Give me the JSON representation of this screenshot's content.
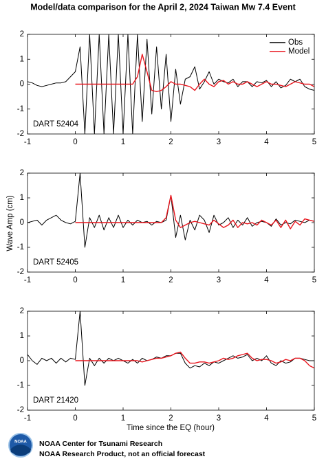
{
  "title": "Model/data comparison for the April 2, 2024 Taiwan Mw 7.4 Event",
  "ylabel": "Wave Amp (cm)",
  "xlabel": "Time since the EQ (hour)",
  "footer": {
    "logo_text": "NOAA",
    "line1": "NOAA Center for Tsunami Research",
    "line2": "NOAA Research Product, not an official forecast"
  },
  "chart_data": [
    {
      "type": "line",
      "annotation": "DART 52404",
      "legend": "upper right",
      "xlim": [
        -1,
        5
      ],
      "xticks": [
        -1,
        0,
        1,
        2,
        3,
        4,
        5
      ],
      "ylim": [
        -2,
        2
      ],
      "yticks": [
        -2,
        -1,
        0,
        1,
        2
      ],
      "x": [
        -1,
        -0.9,
        -0.8,
        -0.7,
        -0.6,
        -0.5,
        -0.4,
        -0.3,
        -0.2,
        -0.1,
        0,
        0.1,
        0.2,
        0.3,
        0.4,
        0.5,
        0.6,
        0.7,
        0.8,
        0.9,
        1,
        1.1,
        1.2,
        1.3,
        1.4,
        1.5,
        1.6,
        1.7,
        1.8,
        1.9,
        2,
        2.1,
        2.2,
        2.3,
        2.4,
        2.5,
        2.6,
        2.7,
        2.8,
        2.9,
        3,
        3.1,
        3.2,
        3.3,
        3.4,
        3.5,
        3.6,
        3.7,
        3.8,
        3.9,
        4,
        4.1,
        4.2,
        4.3,
        4.4,
        4.5,
        4.6,
        4.7,
        4.8,
        4.9,
        5
      ],
      "series": [
        {
          "name": "Obs",
          "color": "#000000",
          "values": [
            0.1,
            0.05,
            -0.05,
            -0.1,
            -0.05,
            0,
            0.05,
            0.05,
            0.1,
            0.3,
            0.5,
            1.5,
            -2,
            2,
            -2,
            2,
            -2,
            2,
            -2,
            2,
            -2,
            2,
            -2,
            2,
            -1.5,
            1.8,
            -1.2,
            1.5,
            -1,
            1.2,
            -1.5,
            0.6,
            -0.8,
            0.2,
            0.3,
            0.7,
            -0.2,
            0.1,
            0.5,
            0,
            0.2,
            0.1,
            0.05,
            0.2,
            -0.1,
            0.1,
            0.1,
            -0.1,
            0.1,
            0.05,
            0.15,
            -0.1,
            0.1,
            -0.15,
            -0.05,
            0.2,
            0.1,
            0.2,
            -0.1,
            -0.2,
            -0.25
          ]
        },
        {
          "name": "Model",
          "color": "#e8141c",
          "values": [
            null,
            null,
            null,
            null,
            null,
            null,
            null,
            null,
            null,
            null,
            0,
            0,
            0,
            0,
            0,
            0,
            0,
            0,
            0,
            0,
            0,
            0,
            0,
            0.3,
            1.2,
            0.5,
            -0.25,
            -0.3,
            -0.25,
            -0.1,
            0.1,
            0,
            0,
            -0.05,
            -0.1,
            -0.25,
            0,
            0.2,
            0,
            -0.1,
            0.1,
            0.15,
            0,
            0.1,
            0,
            0,
            0.1,
            0,
            -0.1,
            0,
            0.1,
            0,
            0,
            -0.05,
            -0.1,
            0,
            0.1,
            0.05,
            0,
            0,
            -0.1
          ]
        }
      ]
    },
    {
      "type": "line",
      "annotation": "DART 52405",
      "xlim": [
        -1,
        5
      ],
      "xticks": [
        -1,
        0,
        1,
        2,
        3,
        4,
        5
      ],
      "ylim": [
        -2,
        2
      ],
      "yticks": [
        -2,
        -1,
        0,
        1,
        2
      ],
      "x": [
        -1,
        -0.9,
        -0.8,
        -0.7,
        -0.6,
        -0.5,
        -0.4,
        -0.3,
        -0.2,
        -0.1,
        0,
        0.1,
        0.2,
        0.3,
        0.4,
        0.5,
        0.6,
        0.7,
        0.8,
        0.9,
        1,
        1.1,
        1.2,
        1.3,
        1.4,
        1.5,
        1.6,
        1.7,
        1.8,
        1.9,
        2,
        2.1,
        2.2,
        2.3,
        2.4,
        2.5,
        2.6,
        2.7,
        2.8,
        2.9,
        3,
        3.1,
        3.2,
        3.3,
        3.4,
        3.5,
        3.6,
        3.7,
        3.8,
        3.9,
        4,
        4.1,
        4.2,
        4.3,
        4.4,
        4.5,
        4.6,
        4.7,
        4.8,
        4.9,
        5
      ],
      "series": [
        {
          "color": "#000000",
          "values": [
            0,
            0.05,
            0.1,
            -0.1,
            0.1,
            0.2,
            0.3,
            0.1,
            0,
            -0.05,
            0.05,
            2,
            -1,
            0.2,
            -0.2,
            0.3,
            -0.3,
            0.2,
            -0.2,
            0.3,
            -0.2,
            0.1,
            -0.1,
            0.1,
            0,
            0.05,
            -0.1,
            0.05,
            0,
            0.1,
            1.1,
            -0.6,
            0.3,
            -0.7,
            0.1,
            -0.3,
            0.3,
            0.1,
            -0.4,
            0.3,
            -0.1,
            0,
            0.2,
            -0.2,
            0.1,
            -0.1,
            0.2,
            -0.15,
            0,
            0.05,
            0,
            -0.15,
            0.15,
            -0.1,
            0,
            -0.05,
            0.1,
            0.05,
            0,
            0.1,
            0.05
          ]
        },
        {
          "color": "#e8141c",
          "values": [
            null,
            null,
            null,
            null,
            null,
            null,
            null,
            null,
            null,
            null,
            0,
            0,
            0,
            0,
            0,
            0,
            0,
            0,
            0,
            0,
            0,
            0,
            0,
            0,
            0,
            0,
            0,
            0,
            0,
            0.2,
            1.1,
            0.1,
            -0.2,
            -0.1,
            0,
            0.05,
            0,
            -0.05,
            -0.1,
            0.1,
            -0.05,
            -0.2,
            -0.1,
            0.1,
            -0.2,
            0,
            -0.05,
            0,
            -0.1,
            0.1,
            0,
            -0.1,
            0.1,
            -0.2,
            0.1,
            -0.25,
            0.05,
            -0.1,
            0.15,
            0.1,
            0.05
          ]
        }
      ]
    },
    {
      "type": "line",
      "annotation": "DART 21420",
      "xlim": [
        -1,
        5
      ],
      "xticks": [
        -1,
        0,
        1,
        2,
        3,
        4,
        5
      ],
      "ylim": [
        -2,
        2
      ],
      "yticks": [
        -2,
        -1,
        0,
        1,
        2
      ],
      "x": [
        -1,
        -0.9,
        -0.8,
        -0.7,
        -0.6,
        -0.5,
        -0.4,
        -0.3,
        -0.2,
        -0.1,
        0,
        0.1,
        0.2,
        0.3,
        0.4,
        0.5,
        0.6,
        0.7,
        0.8,
        0.9,
        1,
        1.1,
        1.2,
        1.3,
        1.4,
        1.5,
        1.6,
        1.7,
        1.8,
        1.9,
        2,
        2.1,
        2.2,
        2.3,
        2.4,
        2.5,
        2.6,
        2.7,
        2.8,
        2.9,
        3,
        3.1,
        3.2,
        3.3,
        3.4,
        3.5,
        3.6,
        3.7,
        3.8,
        3.9,
        4,
        4.1,
        4.2,
        4.3,
        4.4,
        4.5,
        4.6,
        4.7,
        4.8,
        4.9,
        5
      ],
      "series": [
        {
          "color": "#000000",
          "values": [
            0.25,
            0,
            -0.15,
            0.1,
            0,
            0.1,
            -0.1,
            0.1,
            -0.05,
            0.1,
            0.05,
            2,
            -1,
            0.1,
            -0.2,
            0.1,
            -0.1,
            0.1,
            0,
            0.1,
            0,
            -0.1,
            0.05,
            -0.1,
            0.1,
            0,
            0.05,
            0.15,
            0.1,
            0.2,
            0.2,
            0.3,
            0.3,
            -0.1,
            -0.3,
            -0.2,
            -0.25,
            -0.1,
            -0.2,
            -0.05,
            -0.1,
            0,
            0.1,
            0.2,
            0.1,
            0.15,
            0.25,
            0,
            0.1,
            0,
            0.2,
            -0.1,
            -0.2,
            0,
            -0.1,
            -0.05,
            0.1,
            0.1,
            0.05,
            0,
            0
          ]
        },
        {
          "color": "#e8141c",
          "values": [
            null,
            null,
            null,
            null,
            null,
            null,
            null,
            null,
            null,
            null,
            0,
            0,
            0,
            0,
            0,
            0,
            0,
            0,
            0,
            0,
            0,
            0,
            0,
            0,
            -0.05,
            0,
            0.05,
            0.1,
            0.1,
            0.15,
            0.2,
            0.3,
            0.35,
            0.1,
            -0.1,
            -0.1,
            -0.05,
            -0.05,
            -0.1,
            -0.05,
            0,
            0.1,
            0.05,
            0.1,
            0.2,
            0.25,
            0.3,
            0.1,
            0,
            0.05,
            0.05,
            0,
            -0.1,
            -0.05,
            0.05,
            0,
            0.1,
            0.1,
            0,
            -0.2,
            -0.3
          ]
        }
      ]
    }
  ]
}
